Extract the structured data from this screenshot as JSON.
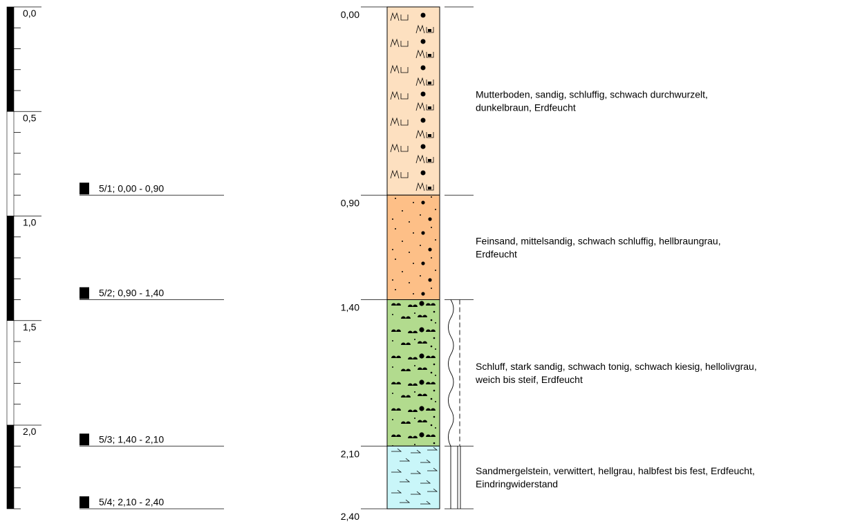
{
  "scale": {
    "labels": [
      "0,0",
      "0,5",
      "1,0",
      "1,5",
      "2,0"
    ],
    "depth_min": 0.0,
    "depth_max": 2.4,
    "minor_step": 0.1,
    "block_colors": [
      "#000000",
      "#ffffff"
    ]
  },
  "samples": [
    {
      "label": "5/1; 0,00 - 0,90",
      "bottom": 0.9
    },
    {
      "label": "5/2; 0,90 - 1,40",
      "bottom": 1.4
    },
    {
      "label": "5/3; 1,40 - 2,10",
      "bottom": 2.1
    },
    {
      "label": "5/4; 2,10 - 2,40",
      "bottom": 2.4
    }
  ],
  "depth_labels": [
    "0,00",
    "0,90",
    "1,40",
    "2,10",
    "2,40"
  ],
  "layers": [
    {
      "top": 0.0,
      "bottom": 0.9,
      "color": "#fde0c0",
      "pattern": "mutterboden",
      "description": [
        "Mutterboden, sandig, schluffig, schwach durchwurzelt,",
        "dunkelbraun, Erdfeucht"
      ]
    },
    {
      "top": 0.9,
      "bottom": 1.4,
      "color": "#fdbf87",
      "pattern": "feinsand",
      "description": [
        "Feinsand, mittelsandig, schwach schluffig, hellbraungrau,",
        "Erdfeucht"
      ]
    },
    {
      "top": 1.4,
      "bottom": 2.1,
      "color": "#b2db8e",
      "pattern": "schluff",
      "description": [
        "Schluff, stark sandig, schwach tonig, schwach kiesig, hellolivgrau,",
        "weich bis steif, Erdfeucht"
      ]
    },
    {
      "top": 2.1,
      "bottom": 2.4,
      "color": "#c9f6f9",
      "pattern": "sandmergelstein",
      "description": [
        "Sandmergelstein, verwittert, hellgrau, halbfest bis fest, Erdfeucht,",
        "Eindringwiderstand"
      ]
    }
  ],
  "consistency": [
    {
      "top": 1.4,
      "bottom": 2.1,
      "symbol": "weich-bis-steif"
    },
    {
      "top": 2.1,
      "bottom": 2.4,
      "symbol": "halbfest-bis-fest"
    }
  ]
}
